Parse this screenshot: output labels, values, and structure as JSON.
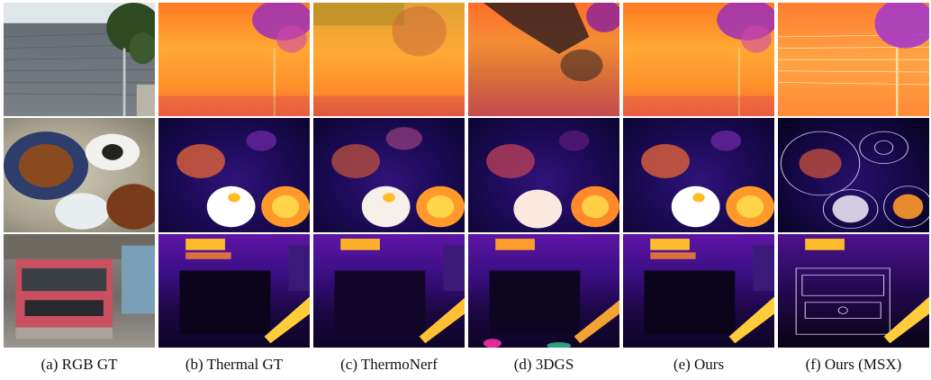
{
  "figure": {
    "captions": [
      "(a) RGB GT",
      "(b) Thermal GT",
      "(c) ThermoNerf",
      "(d) 3DGS",
      "(e) Ours",
      "(f) Ours (MSX)"
    ]
  }
}
